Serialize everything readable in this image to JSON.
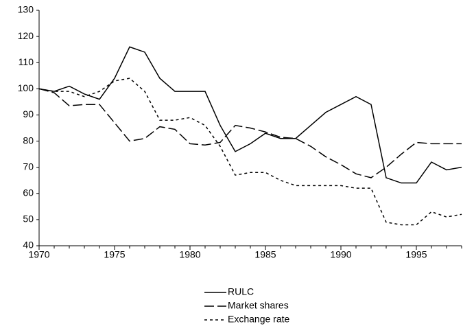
{
  "chart_data": {
    "type": "line",
    "x": [
      1970,
      1971,
      1972,
      1973,
      1974,
      1975,
      1976,
      1977,
      1978,
      1979,
      1980,
      1981,
      1982,
      1983,
      1984,
      1985,
      1986,
      1987,
      1988,
      1989,
      1990,
      1991,
      1992,
      1993,
      1994,
      1995,
      1996,
      1997,
      1998
    ],
    "series": [
      {
        "name": "RULC",
        "color": "#000000",
        "dash": "solid",
        "values": [
          100,
          99,
          101,
          98,
          96,
          104,
          116,
          114,
          104,
          99,
          99,
          99,
          86,
          76,
          79,
          83,
          81,
          81,
          86,
          91,
          94,
          97,
          94,
          66,
          64,
          64,
          72,
          69,
          70
        ]
      },
      {
        "name": "Market shares",
        "color": "#000000",
        "dash": "dashed",
        "values": [
          100,
          98.5,
          93.5,
          94,
          94,
          87,
          80,
          81,
          85.5,
          84.5,
          79,
          78.5,
          79.5,
          86,
          85,
          83.5,
          81.5,
          81,
          78,
          74,
          71,
          67.5,
          66,
          70,
          75,
          79.5,
          79,
          79,
          79
        ]
      },
      {
        "name": "Exchange rate",
        "color": "#000000",
        "dash": "dotted",
        "values": [
          100,
          99,
          99,
          97,
          99,
          103,
          104,
          99,
          88,
          88,
          89,
          86,
          78,
          67,
          68,
          68,
          65,
          63,
          63,
          63,
          63,
          62,
          62,
          49,
          48,
          48,
          53,
          51,
          52
        ]
      }
    ],
    "xlim": [
      1970,
      1998
    ],
    "xticks": [
      1970,
      1975,
      1980,
      1985,
      1990,
      1995
    ],
    "ylim": [
      40,
      130
    ],
    "yticks": [
      40,
      50,
      60,
      70,
      80,
      90,
      100,
      110,
      120,
      130
    ],
    "grid": false,
    "legend": "bottom"
  }
}
